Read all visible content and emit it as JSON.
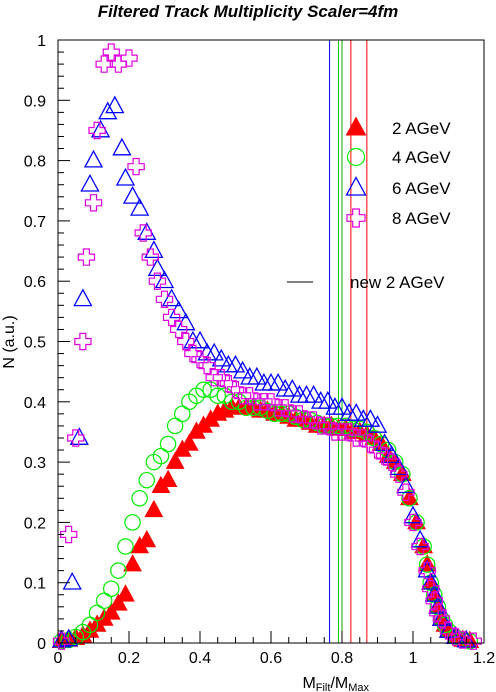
{
  "chart_data": {
    "type": "scatter",
    "title": "Filtered Track Multiplicity Scaler=4fm",
    "xlabel": {
      "main": "M",
      "sub1": "Filt",
      "mid": "/M",
      "sub2": "Max"
    },
    "ylabel": "N (a.u.)",
    "xlim": [
      0,
      1.2
    ],
    "ylim": [
      0,
      1
    ],
    "xticks": [
      0,
      0.2,
      0.4,
      0.6,
      0.8,
      1,
      1.2
    ],
    "xtick_labels": [
      "0",
      "0.2",
      "0.4",
      "0.6",
      "0.8",
      "1",
      "1.2"
    ],
    "yticks": [
      0,
      0.1,
      0.2,
      0.3,
      0.4,
      0.5,
      0.6,
      0.7,
      0.8,
      0.9,
      1
    ],
    "ytick_labels": [
      "0",
      "0.1",
      "0.2",
      "0.3",
      "0.4",
      "0.5",
      "0.6",
      "0.7",
      "0.8",
      "0.9",
      "1"
    ],
    "vertical_lines": [
      {
        "x": 0.765,
        "color": "#0000ff"
      },
      {
        "x": 0.79,
        "color": "#00cc00"
      },
      {
        "x": 0.8,
        "color": "#00aa00"
      },
      {
        "x": 0.825,
        "color": "#ff0000"
      },
      {
        "x": 0.87,
        "color": "#ff0000"
      }
    ],
    "series": [
      {
        "name": "2 AGeV",
        "marker": "filled-triangle",
        "color": "#ff0000",
        "points": [
          [
            0.01,
            0.003
          ],
          [
            0.03,
            0.005
          ],
          [
            0.05,
            0.008
          ],
          [
            0.07,
            0.012
          ],
          [
            0.09,
            0.02
          ],
          [
            0.11,
            0.03
          ],
          [
            0.13,
            0.04
          ],
          [
            0.15,
            0.05
          ],
          [
            0.17,
            0.065
          ],
          [
            0.19,
            0.08
          ],
          [
            0.21,
            0.13
          ],
          [
            0.23,
            0.16
          ],
          [
            0.25,
            0.17
          ],
          [
            0.27,
            0.22
          ],
          [
            0.29,
            0.26
          ],
          [
            0.31,
            0.27
          ],
          [
            0.33,
            0.3
          ],
          [
            0.35,
            0.32
          ],
          [
            0.37,
            0.33
          ],
          [
            0.39,
            0.35
          ],
          [
            0.41,
            0.36
          ],
          [
            0.43,
            0.37
          ],
          [
            0.45,
            0.38
          ],
          [
            0.47,
            0.385
          ],
          [
            0.49,
            0.39
          ],
          [
            0.51,
            0.39
          ],
          [
            0.53,
            0.39
          ],
          [
            0.55,
            0.39
          ],
          [
            0.57,
            0.385
          ],
          [
            0.59,
            0.385
          ],
          [
            0.61,
            0.38
          ],
          [
            0.63,
            0.38
          ],
          [
            0.65,
            0.375
          ],
          [
            0.67,
            0.37
          ],
          [
            0.69,
            0.37
          ],
          [
            0.71,
            0.365
          ],
          [
            0.73,
            0.36
          ],
          [
            0.75,
            0.36
          ],
          [
            0.77,
            0.36
          ],
          [
            0.79,
            0.355
          ],
          [
            0.81,
            0.355
          ],
          [
            0.83,
            0.35
          ],
          [
            0.85,
            0.35
          ],
          [
            0.87,
            0.345
          ],
          [
            0.89,
            0.34
          ],
          [
            0.91,
            0.33
          ],
          [
            0.93,
            0.31
          ],
          [
            0.95,
            0.3
          ],
          [
            0.97,
            0.28
          ],
          [
            0.99,
            0.24
          ],
          [
            1.01,
            0.2
          ],
          [
            1.03,
            0.16
          ],
          [
            1.04,
            0.13
          ],
          [
            1.05,
            0.1
          ],
          [
            1.06,
            0.08
          ],
          [
            1.07,
            0.06
          ],
          [
            1.08,
            0.04
          ],
          [
            1.09,
            0.03
          ],
          [
            1.1,
            0.02
          ],
          [
            1.12,
            0.01
          ],
          [
            1.14,
            0.005
          ],
          [
            1.16,
            0.003
          ]
        ]
      },
      {
        "name": "4 AGeV",
        "marker": "open-circle",
        "color": "#00ee00",
        "points": [
          [
            0.01,
            0.003
          ],
          [
            0.03,
            0.005
          ],
          [
            0.05,
            0.01
          ],
          [
            0.07,
            0.018
          ],
          [
            0.09,
            0.03
          ],
          [
            0.11,
            0.05
          ],
          [
            0.13,
            0.07
          ],
          [
            0.15,
            0.09
          ],
          [
            0.17,
            0.12
          ],
          [
            0.19,
            0.16
          ],
          [
            0.21,
            0.2
          ],
          [
            0.23,
            0.24
          ],
          [
            0.25,
            0.27
          ],
          [
            0.27,
            0.3
          ],
          [
            0.29,
            0.31
          ],
          [
            0.31,
            0.33
          ],
          [
            0.33,
            0.36
          ],
          [
            0.35,
            0.38
          ],
          [
            0.37,
            0.4
          ],
          [
            0.39,
            0.41
          ],
          [
            0.41,
            0.42
          ],
          [
            0.43,
            0.42
          ],
          [
            0.45,
            0.41
          ],
          [
            0.47,
            0.41
          ],
          [
            0.49,
            0.4
          ],
          [
            0.51,
            0.4
          ],
          [
            0.53,
            0.39
          ],
          [
            0.55,
            0.39
          ],
          [
            0.57,
            0.39
          ],
          [
            0.59,
            0.385
          ],
          [
            0.61,
            0.38
          ],
          [
            0.63,
            0.38
          ],
          [
            0.65,
            0.38
          ],
          [
            0.67,
            0.375
          ],
          [
            0.69,
            0.37
          ],
          [
            0.71,
            0.37
          ],
          [
            0.73,
            0.365
          ],
          [
            0.75,
            0.36
          ],
          [
            0.77,
            0.36
          ],
          [
            0.79,
            0.36
          ],
          [
            0.81,
            0.36
          ],
          [
            0.83,
            0.355
          ],
          [
            0.85,
            0.355
          ],
          [
            0.87,
            0.35
          ],
          [
            0.89,
            0.34
          ],
          [
            0.91,
            0.33
          ],
          [
            0.93,
            0.32
          ],
          [
            0.95,
            0.3
          ],
          [
            0.97,
            0.28
          ],
          [
            0.99,
            0.24
          ],
          [
            1.01,
            0.2
          ],
          [
            1.03,
            0.16
          ],
          [
            1.04,
            0.13
          ],
          [
            1.05,
            0.1
          ],
          [
            1.06,
            0.08
          ],
          [
            1.07,
            0.06
          ],
          [
            1.08,
            0.04
          ],
          [
            1.09,
            0.03
          ],
          [
            1.1,
            0.02
          ],
          [
            1.12,
            0.01
          ],
          [
            1.14,
            0.005
          ],
          [
            1.16,
            0.003
          ]
        ]
      },
      {
        "name": "6 AGeV",
        "marker": "open-triangle",
        "color": "#0000ff",
        "points": [
          [
            0.01,
            0.004
          ],
          [
            0.03,
            0.006
          ],
          [
            0.04,
            0.1
          ],
          [
            0.06,
            0.34
          ],
          [
            0.07,
            0.57
          ],
          [
            0.09,
            0.76
          ],
          [
            0.1,
            0.8
          ],
          [
            0.12,
            0.85
          ],
          [
            0.14,
            0.88
          ],
          [
            0.16,
            0.89
          ],
          [
            0.18,
            0.82
          ],
          [
            0.19,
            0.77
          ],
          [
            0.21,
            0.74
          ],
          [
            0.23,
            0.72
          ],
          [
            0.25,
            0.68
          ],
          [
            0.27,
            0.65
          ],
          [
            0.28,
            0.62
          ],
          [
            0.3,
            0.6
          ],
          [
            0.32,
            0.57
          ],
          [
            0.34,
            0.55
          ],
          [
            0.36,
            0.53
          ],
          [
            0.38,
            0.5
          ],
          [
            0.4,
            0.5
          ],
          [
            0.42,
            0.48
          ],
          [
            0.44,
            0.48
          ],
          [
            0.46,
            0.47
          ],
          [
            0.48,
            0.46
          ],
          [
            0.5,
            0.46
          ],
          [
            0.52,
            0.45
          ],
          [
            0.54,
            0.44
          ],
          [
            0.56,
            0.44
          ],
          [
            0.58,
            0.43
          ],
          [
            0.6,
            0.43
          ],
          [
            0.62,
            0.43
          ],
          [
            0.64,
            0.42
          ],
          [
            0.66,
            0.42
          ],
          [
            0.68,
            0.41
          ],
          [
            0.7,
            0.41
          ],
          [
            0.72,
            0.41
          ],
          [
            0.74,
            0.4
          ],
          [
            0.76,
            0.4
          ],
          [
            0.78,
            0.39
          ],
          [
            0.8,
            0.39
          ],
          [
            0.82,
            0.38
          ],
          [
            0.84,
            0.38
          ],
          [
            0.86,
            0.37
          ],
          [
            0.88,
            0.37
          ],
          [
            0.9,
            0.36
          ],
          [
            0.92,
            0.33
          ],
          [
            0.94,
            0.31
          ],
          [
            0.96,
            0.29
          ],
          [
            0.98,
            0.26
          ],
          [
            1.0,
            0.21
          ],
          [
            1.02,
            0.17
          ],
          [
            1.04,
            0.12
          ],
          [
            1.05,
            0.1
          ],
          [
            1.06,
            0.08
          ],
          [
            1.07,
            0.06
          ],
          [
            1.08,
            0.04
          ],
          [
            1.1,
            0.02
          ],
          [
            1.12,
            0.01
          ],
          [
            1.15,
            0.004
          ]
        ]
      },
      {
        "name": "8 AGeV",
        "marker": "open-cross",
        "color": "#dd00dd",
        "points": [
          [
            0.01,
            0.003
          ],
          [
            0.03,
            0.18
          ],
          [
            0.05,
            0.34
          ],
          [
            0.07,
            0.5
          ],
          [
            0.08,
            0.64
          ],
          [
            0.1,
            0.73
          ],
          [
            0.11,
            0.85
          ],
          [
            0.13,
            0.96
          ],
          [
            0.15,
            0.98
          ],
          [
            0.17,
            0.96
          ],
          [
            0.2,
            0.97
          ],
          [
            0.22,
            0.79
          ],
          [
            0.24,
            0.68
          ],
          [
            0.26,
            0.64
          ],
          [
            0.28,
            0.6
          ],
          [
            0.3,
            0.57
          ],
          [
            0.32,
            0.54
          ],
          [
            0.34,
            0.52
          ],
          [
            0.36,
            0.5
          ],
          [
            0.38,
            0.48
          ],
          [
            0.4,
            0.47
          ],
          [
            0.42,
            0.46
          ],
          [
            0.44,
            0.44
          ],
          [
            0.46,
            0.44
          ],
          [
            0.48,
            0.43
          ],
          [
            0.5,
            0.42
          ],
          [
            0.52,
            0.41
          ],
          [
            0.54,
            0.41
          ],
          [
            0.56,
            0.4
          ],
          [
            0.58,
            0.4
          ],
          [
            0.6,
            0.4
          ],
          [
            0.62,
            0.39
          ],
          [
            0.64,
            0.39
          ],
          [
            0.66,
            0.38
          ],
          [
            0.68,
            0.38
          ],
          [
            0.7,
            0.37
          ],
          [
            0.72,
            0.37
          ],
          [
            0.74,
            0.36
          ],
          [
            0.76,
            0.36
          ],
          [
            0.78,
            0.35
          ],
          [
            0.8,
            0.35
          ],
          [
            0.82,
            0.35
          ],
          [
            0.84,
            0.34
          ],
          [
            0.86,
            0.34
          ],
          [
            0.88,
            0.33
          ],
          [
            0.9,
            0.32
          ],
          [
            0.92,
            0.31
          ],
          [
            0.94,
            0.3
          ],
          [
            0.96,
            0.28
          ],
          [
            0.98,
            0.25
          ],
          [
            1.0,
            0.2
          ],
          [
            1.02,
            0.16
          ],
          [
            1.04,
            0.12
          ],
          [
            1.05,
            0.09
          ],
          [
            1.06,
            0.07
          ],
          [
            1.07,
            0.05
          ],
          [
            1.08,
            0.04
          ],
          [
            1.1,
            0.02
          ],
          [
            1.12,
            0.01
          ],
          [
            1.14,
            0.005
          ],
          [
            1.17,
            0.003
          ]
        ]
      }
    ],
    "legend": {
      "placement": "right",
      "entries": [
        {
          "label": "2 AGeV",
          "marker": "filled-triangle",
          "color": "#ff0000"
        },
        {
          "label": "4 AGeV",
          "marker": "open-circle",
          "color": "#00ee00"
        },
        {
          "label": "6 AGeV",
          "marker": "open-triangle",
          "color": "#0000ff"
        },
        {
          "label": "8 AGeV",
          "marker": "open-cross",
          "color": "#dd00dd"
        },
        {
          "label": "new 2 AGeV",
          "marker": "line",
          "color": "#000000"
        }
      ]
    }
  }
}
